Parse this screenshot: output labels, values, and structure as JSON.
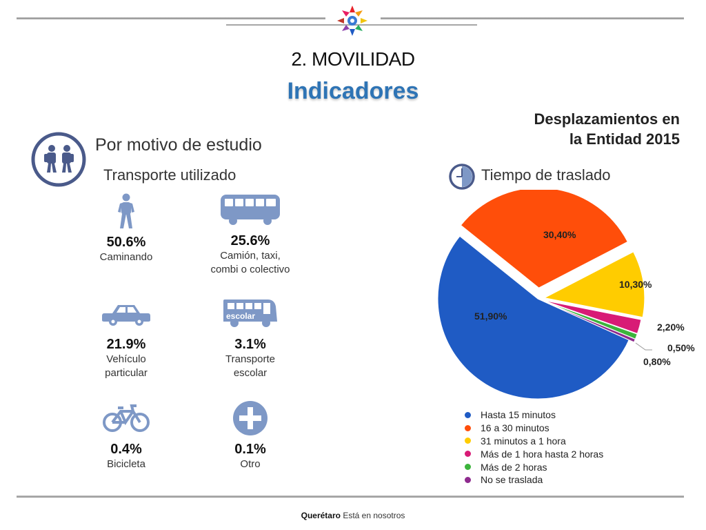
{
  "header": {
    "section": "2. MOVILIDAD",
    "title": "Indicadores",
    "right_heading_line1": "Desplazamientos en",
    "right_heading_line2": "la Entidad 2015"
  },
  "left": {
    "topic": "Por motivo de estudio",
    "subtopic": "Transporte utilizado",
    "tiles": [
      {
        "pct": "50.6%",
        "label": "Caminando",
        "icon": "walking-person-icon"
      },
      {
        "pct": "25.6%",
        "label": "Camión, taxi,\ncombi o  colectivo",
        "icon": "bus-icon"
      },
      {
        "pct": "21.9%",
        "label": "Vehículo\nparticular",
        "icon": "car-icon"
      },
      {
        "pct": "3.1%",
        "label": "Transporte\nescolar",
        "icon": "school-bus-icon",
        "icon_text": "escolar"
      },
      {
        "pct": "0.4%",
        "label": "Bicicleta",
        "icon": "bicycle-icon"
      },
      {
        "pct": "0.1%",
        "label": "Otro",
        "icon": "plus-icon"
      }
    ]
  },
  "chart_data": {
    "type": "pie",
    "title": "Tiempo de traslado",
    "categories": [
      "Hasta 15 minutos",
      "16 a 30 minutos",
      "31 minutos a 1 hora",
      "Más de 1 hora hasta 2 horas",
      "Más de 2 horas",
      "No se traslada"
    ],
    "values": [
      51.9,
      30.4,
      10.3,
      2.2,
      0.8,
      0.5
    ],
    "data_labels": [
      "51,90%",
      "30,40%",
      "10,30%",
      "2,20%",
      "0,80%",
      "0,50%"
    ],
    "colors": [
      "#1f5bc4",
      "#ff4e0a",
      "#ffcc00",
      "#d81b76",
      "#3cb43c",
      "#8e2a8e"
    ],
    "legend_position": "bottom"
  },
  "footer": {
    "brand": "Querétaro",
    "slogan": "Está en nosotros"
  },
  "colors": {
    "icon": "#7e98c6",
    "circle_icon": "#4a5a8a",
    "title_blue": "#2e74b5"
  }
}
